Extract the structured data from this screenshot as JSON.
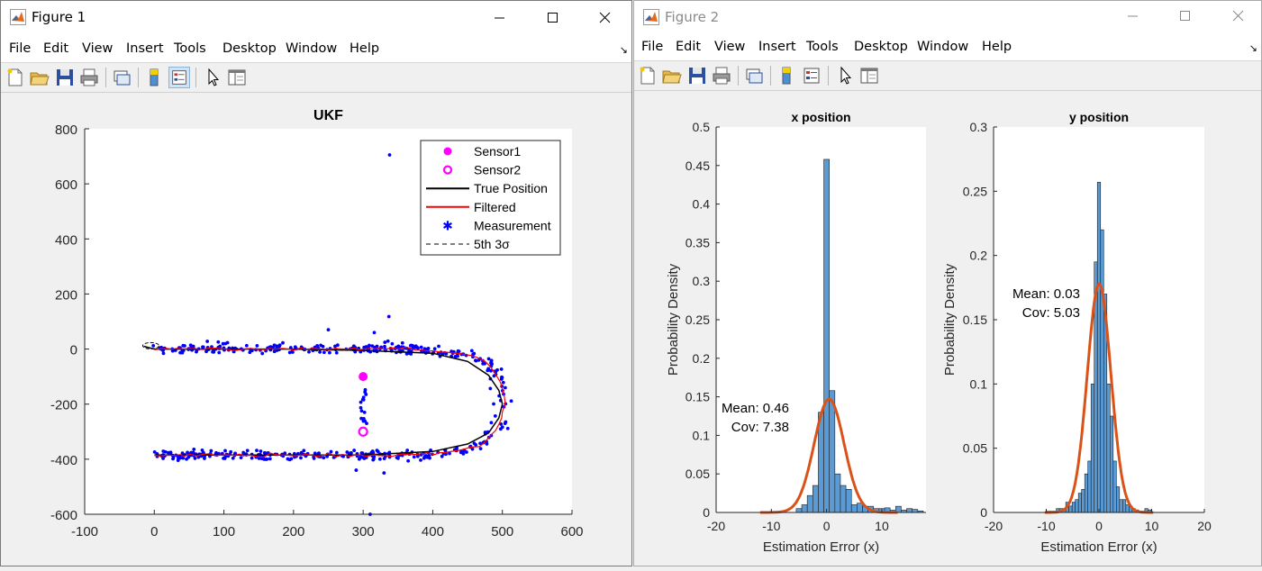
{
  "windows": [
    {
      "title": "Figure 1",
      "menu": [
        "File",
        "Edit",
        "View",
        "Insert",
        "Tools",
        "Desktop",
        "Window",
        "Help"
      ]
    },
    {
      "title": "Figure 2",
      "menu": [
        "File",
        "Edit",
        "View",
        "Insert",
        "Tools",
        "Desktop",
        "Window",
        "Help"
      ]
    }
  ],
  "icons": [
    "new-figure-icon",
    "open-file-icon",
    "save-icon",
    "print-icon",
    "link-icon",
    "colorbar-icon",
    "legend-icon",
    "edit-plot-icon",
    "property-inspector-icon"
  ],
  "colors": {
    "measurement": "#0000ff",
    "filtered": "#ff0000",
    "true_position": "#000000",
    "sensor": "#ff00ff",
    "hist_bar": "#5b9bd5",
    "fit_curve": "#d95319"
  },
  "chart_data": [
    {
      "type": "scatter",
      "title": "UKF",
      "xlim": [
        -100,
        600
      ],
      "ylim": [
        -600,
        800
      ],
      "xticks": [
        "-100",
        "0",
        "100",
        "200",
        "300",
        "400",
        "500",
        "600"
      ],
      "yticks": [
        "-600",
        "-400",
        "-200",
        "0",
        "200",
        "400",
        "600",
        "800"
      ],
      "legend_position": "top-right",
      "legend": [
        "Sensor1",
        "Sensor2",
        "True Position",
        "Filtered",
        "Measurement",
        "5th 3σ"
      ],
      "sensors": [
        {
          "name": "Sensor1",
          "x": 300,
          "y": -100
        },
        {
          "name": "Sensor2",
          "x": 300,
          "y": -300
        }
      ],
      "true_position": {
        "top": {
          "x": [
            -15,
            0,
            100,
            200,
            300,
            400,
            450,
            480,
            495,
            500
          ],
          "y": [
            10,
            0,
            0,
            0,
            -5,
            -15,
            -45,
            -95,
            -150,
            -200
          ]
        },
        "bottom": {
          "x": [
            500,
            495,
            480,
            450,
            400,
            300,
            200,
            100,
            0
          ],
          "y": [
            -200,
            -250,
            -305,
            -345,
            -372,
            -385,
            -385,
            -385,
            -385
          ]
        }
      },
      "measurement_outliers": [
        {
          "x": 338,
          "y": 705
        },
        {
          "x": 337,
          "y": 118
        },
        {
          "x": 300,
          "y": -105
        },
        {
          "x": 305,
          "y": -270
        },
        {
          "x": 302,
          "y": -230
        },
        {
          "x": 310,
          "y": -600
        },
        {
          "x": 330,
          "y": -450
        },
        {
          "x": 290,
          "y": -440
        },
        {
          "x": 250,
          "y": 70
        },
        {
          "x": 316,
          "y": 60
        }
      ]
    },
    {
      "type": "bar",
      "title": "x position",
      "xlabel": "Estimation Error (x)",
      "ylabel": "Probability Density",
      "xlim": [
        -20,
        18
      ],
      "ylim": [
        0,
        0.5
      ],
      "xticks": [
        "-20",
        "-10",
        "0",
        "10"
      ],
      "yticks": [
        "0",
        "0.05",
        "0.1",
        "0.15",
        "0.2",
        "0.25",
        "0.3",
        "0.35",
        "0.4",
        "0.45",
        "0.5"
      ],
      "annotation": [
        "Mean: 0.46",
        "Cov: 7.38"
      ],
      "bin_width": 1,
      "bins": [
        -5,
        -4,
        -3,
        -2,
        -1,
        0,
        1,
        2,
        3,
        4,
        5,
        6,
        7,
        8,
        9,
        10,
        11,
        12,
        13,
        14,
        15,
        16,
        17
      ],
      "values": [
        0.005,
        0.01,
        0.022,
        0.035,
        0.13,
        0.458,
        0.158,
        0.05,
        0.035,
        0.03,
        0.01,
        0.012,
        0.008,
        0.008,
        0.005,
        0.005,
        0.006,
        0.003,
        0.008,
        0.003,
        0.005,
        0.004,
        0.002
      ],
      "fit": {
        "mean": 0.46,
        "variance": 7.38
      }
    },
    {
      "type": "bar",
      "title": "y position",
      "xlabel": "Estimation Error (x)",
      "ylabel": "Probability Density",
      "xlim": [
        -20,
        20
      ],
      "ylim": [
        0,
        0.3
      ],
      "xticks": [
        "-20",
        "-10",
        "0",
        "10",
        "20"
      ],
      "yticks": [
        "0",
        "0.05",
        "0.1",
        "0.15",
        "0.2",
        "0.25",
        "0.3"
      ],
      "annotation": [
        "Mean: 0.03",
        "Cov: 5.03"
      ],
      "bin_width": 0.6,
      "bins": [
        -9.6,
        -9,
        -8.4,
        -7.8,
        -7.2,
        -6.6,
        -6,
        -5.4,
        -4.8,
        -4.2,
        -3.6,
        -3,
        -2.4,
        -1.8,
        -1.2,
        -0.6,
        0,
        0.6,
        1.2,
        1.8,
        2.4,
        3,
        3.6,
        4.2,
        4.8,
        5.4,
        6,
        6.6,
        7.2,
        7.8,
        8.4,
        9,
        9.6
      ],
      "values": [
        0.001,
        0.001,
        0.001,
        0.003,
        0.003,
        0.003,
        0.008,
        0.005,
        0.008,
        0.01,
        0.015,
        0.018,
        0.03,
        0.04,
        0.1,
        0.195,
        0.257,
        0.22,
        0.17,
        0.1,
        0.075,
        0.04,
        0.02,
        0.01,
        0.01,
        0.006,
        0.005,
        0.003,
        0.002,
        0.001,
        0.001,
        0.003,
        0.002
      ],
      "fit": {
        "mean": 0.03,
        "variance": 5.03
      }
    }
  ]
}
